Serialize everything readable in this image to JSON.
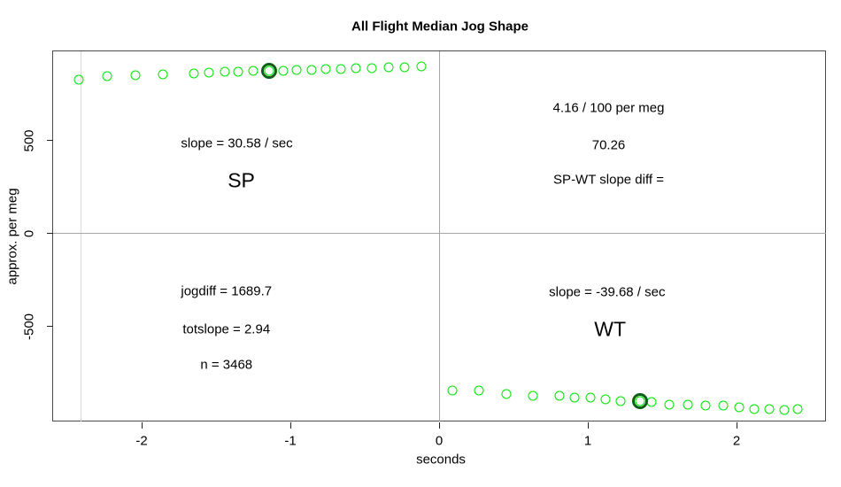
{
  "chart_data": {
    "type": "scatter",
    "title": "All Flight Median Jog Shape",
    "xlabel": "seconds",
    "ylabel": "approx. per meg",
    "xlim": [
      -2.6,
      2.6
    ],
    "ylim": [
      -1010,
      980
    ],
    "x_ticks": [
      -2,
      -1,
      0,
      1,
      2
    ],
    "y_ticks": [
      500,
      0,
      -500
    ],
    "grid": false,
    "legend": "none",
    "point_color": "#00e400",
    "highlight_color": "#0d5f17",
    "reference_line_color": "#a6a6a6",
    "light_reference_line_color": "#d8d8d8",
    "series": [
      {
        "name": "SP",
        "x": [
          -2.42,
          -2.23,
          -2.04,
          -1.86,
          -1.65,
          -1.55,
          -1.44,
          -1.35,
          -1.25,
          -1.14,
          -1.05,
          -0.96,
          -0.86,
          -0.76,
          -0.66,
          -0.56,
          -0.45,
          -0.34,
          -0.23,
          -0.12
        ],
        "y": [
          827,
          845,
          850,
          853,
          861,
          866,
          868,
          870,
          874,
          872,
          875,
          880,
          880,
          883,
          883,
          886,
          888,
          891,
          891,
          896
        ],
        "highlight_index": 9
      },
      {
        "name": "WT",
        "x": [
          0.09,
          0.27,
          0.45,
          0.63,
          0.81,
          0.91,
          1.02,
          1.12,
          1.22,
          1.35,
          1.43,
          1.55,
          1.67,
          1.79,
          1.91,
          2.02,
          2.12,
          2.22,
          2.32,
          2.41
        ],
        "y": [
          -846,
          -843,
          -864,
          -872,
          -872,
          -885,
          -885,
          -893,
          -901,
          -904,
          -907,
          -923,
          -923,
          -928,
          -928,
          -937,
          -944,
          -947,
          -950,
          -944
        ],
        "highlight_index": 9
      }
    ],
    "reference_lines": [
      {
        "orientation": "vertical",
        "x": -2.41,
        "style": "light"
      },
      {
        "orientation": "vertical",
        "x": 0,
        "style": "gray"
      },
      {
        "orientation": "horizontal",
        "y": 0,
        "style": "gray"
      }
    ],
    "annotations": [
      {
        "name": "sp-slope",
        "text": "slope = 30.58 / sec",
        "x": -1.36,
        "y": 483,
        "large": false
      },
      {
        "name": "sp-label",
        "text": "SP",
        "x": -1.33,
        "y": 283,
        "large": true
      },
      {
        "name": "rate-per-meg",
        "text": "4.16 / 100 per meg",
        "x": 1.14,
        "y": 673,
        "large": false
      },
      {
        "name": "slope-diff-value",
        "text": "70.26",
        "x": 1.14,
        "y": 474,
        "large": false
      },
      {
        "name": "slope-diff-label",
        "text": "SP-WT slope diff =",
        "x": 1.14,
        "y": 288,
        "large": false
      },
      {
        "name": "jogdiff",
        "text": "jogdiff = 1689.7",
        "x": -1.43,
        "y": -312,
        "large": false
      },
      {
        "name": "totslope",
        "text": "totslope = 2.94",
        "x": -1.43,
        "y": -517,
        "large": false
      },
      {
        "name": "n-count",
        "text": "n = 3468",
        "x": -1.43,
        "y": -707,
        "large": false
      },
      {
        "name": "wt-slope",
        "text": "slope = -39.68 / sec",
        "x": 1.13,
        "y": -317,
        "large": false
      },
      {
        "name": "wt-label",
        "text": "WT",
        "x": 1.15,
        "y": -517,
        "large": true
      }
    ]
  }
}
